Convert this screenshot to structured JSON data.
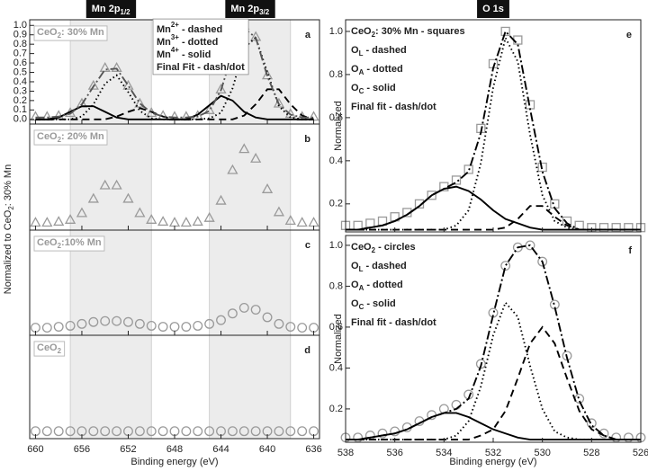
{
  "chart_data": [
    {
      "type": "line",
      "letter": "a",
      "label": [
        {
          "text": "CeO"
        },
        {
          "sub": "2"
        },
        {
          "text": ": 30% Mn"
        }
      ],
      "headers": [
        [
          {
            "text": "Mn 2p"
          },
          {
            "sub": "1/2"
          }
        ],
        [
          {
            "text": "Mn 2p"
          },
          {
            "sub": "3/2"
          }
        ]
      ],
      "y_label": [
        {
          "text": "Normalized to CeO"
        },
        {
          "sub": "2"
        },
        {
          "text": ": 30% Mn"
        }
      ],
      "legend": "upper center",
      "xlim": [
        660.5,
        635.5
      ],
      "ylim": [
        -0.05,
        1.06
      ],
      "xticks": [
        660,
        656,
        652,
        648,
        644,
        640,
        636
      ],
      "xtick_labels": false,
      "yticks": [
        {
          "value": 0,
          "label": "0.0"
        },
        0.1,
        0.2,
        0.3,
        0.4,
        0.5,
        0.6,
        0.7,
        0.8,
        0.9,
        {
          "value": 1,
          "label": "1.0"
        }
      ],
      "shaded": [
        [
          657,
          650
        ],
        [
          645,
          638
        ]
      ],
      "x": [
        660,
        659,
        658,
        657,
        656,
        655,
        654,
        653,
        652,
        651,
        650,
        649,
        648,
        647,
        646,
        645,
        644,
        643,
        642,
        641,
        640,
        639,
        638,
        637,
        636
      ],
      "series": [
        {
          "marker": "triangle",
          "color": "#9a9a9a",
          "values": [
            0.03,
            0.03,
            0.04,
            0.07,
            0.17,
            0.36,
            0.55,
            0.55,
            0.36,
            0.17,
            0.07,
            0.04,
            0.03,
            0.03,
            0.04,
            0.1,
            0.32,
            0.72,
            1.0,
            0.88,
            0.47,
            0.17,
            0.06,
            0.03,
            0.03
          ]
        },
        {
          "name": [
            {
              "text": "Mn"
            },
            {
              "sup": "2+"
            },
            {
              "text": " - dashed"
            }
          ],
          "style": "dashed",
          "color": "#000000",
          "values": [
            0,
            0,
            0,
            0,
            0,
            0,
            0,
            0.03,
            0.08,
            0.12,
            0.08,
            0.03,
            0,
            0,
            0,
            0,
            0,
            0,
            0.04,
            0.16,
            0.32,
            0.32,
            0.16,
            0.04,
            0
          ]
        },
        {
          "name": [
            {
              "text": "Mn"
            },
            {
              "sup": "3+"
            },
            {
              "text": " - dotted"
            }
          ],
          "style": "dotted",
          "color": "#000000",
          "values": [
            0,
            0,
            0,
            0,
            0.03,
            0.16,
            0.38,
            0.47,
            0.29,
            0.09,
            0.01,
            0,
            0,
            0,
            0,
            0.01,
            0.07,
            0.33,
            0.76,
            0.87,
            0.5,
            0.14,
            0.02,
            0,
            0
          ]
        },
        {
          "name": [
            {
              "text": "Mn"
            },
            {
              "sup": "4+"
            },
            {
              "text": " - solid"
            }
          ],
          "style": "solid",
          "color": "#000000",
          "values": [
            0,
            0,
            0.02,
            0.08,
            0.14,
            0.14,
            0.08,
            0.02,
            0,
            0,
            0,
            0,
            0,
            0,
            0.05,
            0.15,
            0.25,
            0.2,
            0.08,
            0.02,
            0,
            0,
            0,
            0,
            0
          ]
        },
        {
          "name": [
            {
              "text": "Final Fit - dash/dot"
            }
          ],
          "style": "dashdot",
          "color": "#555555",
          "values": [
            0.02,
            0.02,
            0.03,
            0.06,
            0.16,
            0.35,
            0.53,
            0.54,
            0.36,
            0.17,
            0.07,
            0.03,
            0.02,
            0.02,
            0.03,
            0.09,
            0.31,
            0.71,
            0.97,
            0.87,
            0.46,
            0.16,
            0.05,
            0.02,
            0.02
          ]
        }
      ]
    },
    {
      "type": "line",
      "letter": "b",
      "label": [
        {
          "text": "CeO"
        },
        {
          "sub": "2"
        },
        {
          "text": ": 20% Mn"
        }
      ],
      "xlim": [
        660.5,
        635.5
      ],
      "ylim": [
        -0.05,
        1.06
      ],
      "xticks": [
        660,
        656,
        652,
        648,
        644,
        640,
        636
      ],
      "xtick_labels": false,
      "shaded": [
        [
          657,
          650
        ],
        [
          645,
          638
        ]
      ],
      "x": [
        660,
        659,
        658,
        657,
        656,
        655,
        654,
        653,
        652,
        651,
        650,
        649,
        648,
        647,
        646,
        645,
        644,
        643,
        642,
        641,
        640,
        639,
        638,
        637,
        636
      ],
      "series": [
        {
          "marker": "triangle",
          "color": "#9a9a9a",
          "values": [
            0.03,
            0.03,
            0.04,
            0.06,
            0.13,
            0.28,
            0.42,
            0.42,
            0.28,
            0.13,
            0.06,
            0.04,
            0.03,
            0.03,
            0.04,
            0.08,
            0.26,
            0.58,
            0.8,
            0.7,
            0.38,
            0.14,
            0.05,
            0.03,
            0.03
          ]
        }
      ]
    },
    {
      "type": "line",
      "letter": "c",
      "label": [
        {
          "text": "CeO"
        },
        {
          "sub": "2"
        },
        {
          "text": ":10% Mn"
        }
      ],
      "xlim": [
        660.5,
        635.5
      ],
      "ylim": [
        -0.05,
        1.06
      ],
      "xticks": [
        660,
        656,
        652,
        648,
        644,
        640,
        636
      ],
      "xtick_labels": false,
      "shaded": [
        [
          657,
          650
        ],
        [
          645,
          638
        ]
      ],
      "x": [
        660,
        659,
        658,
        657,
        656,
        655,
        654,
        653,
        652,
        651,
        650,
        649,
        648,
        647,
        646,
        645,
        644,
        643,
        642,
        641,
        640,
        639,
        638,
        637,
        636
      ],
      "series": [
        {
          "marker": "circle",
          "color": "#9a9a9a",
          "values": [
            0.03,
            0.03,
            0.04,
            0.05,
            0.07,
            0.09,
            0.1,
            0.1,
            0.09,
            0.07,
            0.05,
            0.04,
            0.04,
            0.04,
            0.05,
            0.07,
            0.11,
            0.18,
            0.24,
            0.22,
            0.14,
            0.07,
            0.04,
            0.03,
            0.03
          ]
        }
      ]
    },
    {
      "type": "line",
      "letter": "d",
      "label": [
        {
          "text": "CeO"
        },
        {
          "sub": "2"
        }
      ],
      "x_label": [
        {
          "text": "Binding energy (eV)"
        }
      ],
      "xlim": [
        660.5,
        635.5
      ],
      "ylim": [
        -0.05,
        1.06
      ],
      "xticks": [
        660,
        656,
        652,
        648,
        644,
        640,
        636
      ],
      "xtick_labels": true,
      "shaded": [
        [
          657,
          650
        ],
        [
          645,
          638
        ]
      ],
      "x": [
        660,
        659,
        658,
        657,
        656,
        655,
        654,
        653,
        652,
        651,
        650,
        649,
        648,
        647,
        646,
        645,
        644,
        643,
        642,
        641,
        640,
        639,
        638,
        637,
        636
      ],
      "series": [
        {
          "marker": "circle",
          "color": "#9a9a9a",
          "values": [
            0.03,
            0.03,
            0.03,
            0.03,
            0.03,
            0.03,
            0.03,
            0.03,
            0.03,
            0.03,
            0.03,
            0.03,
            0.03,
            0.03,
            0.03,
            0.03,
            0.03,
            0.03,
            0.03,
            0.03,
            0.03,
            0.03,
            0.03,
            0.03,
            0.03
          ]
        }
      ]
    },
    {
      "type": "line",
      "letter": "e",
      "headers": [
        [
          {
            "text": "O 1s"
          }
        ]
      ],
      "y_label": [
        {
          "text": "Normalized"
        }
      ],
      "legend": "upper left",
      "xlim": [
        538,
        526
      ],
      "ylim": [
        0.07,
        1.054
      ],
      "xticks": [
        538,
        536,
        534,
        532,
        530,
        528,
        526
      ],
      "xtick_labels": false,
      "yticks": [
        0.2,
        0.4,
        0.6,
        0.8,
        {
          "value": 1,
          "label": "1.0"
        }
      ],
      "x": [
        538,
        537.5,
        537,
        536.5,
        536,
        535.5,
        535,
        534.5,
        534,
        533.5,
        533,
        532.5,
        532,
        531.5,
        531,
        530.5,
        530,
        529.5,
        529,
        528.5,
        528,
        527.5,
        527,
        526.5,
        526
      ],
      "series": [
        {
          "name": [
            {
              "text": "CeO"
            },
            {
              "sub": "2"
            },
            {
              "text": ": 30% Mn - squares"
            }
          ],
          "marker": "square",
          "color": "#9a9a9a",
          "values": [
            0.1,
            0.1,
            0.11,
            0.12,
            0.14,
            0.16,
            0.2,
            0.24,
            0.28,
            0.31,
            0.36,
            0.55,
            0.85,
            1.0,
            0.96,
            0.66,
            0.37,
            0.2,
            0.12,
            0.1,
            0.09,
            0.09,
            0.09,
            0.09,
            0.09
          ]
        },
        {
          "name": [
            {
              "text": "O"
            },
            {
              "sub": "L"
            },
            {
              "text": " - dashed"
            }
          ],
          "style": "dashed",
          "color": "#000000",
          "values": [
            0.08,
            0.08,
            0.08,
            0.08,
            0.08,
            0.08,
            0.08,
            0.08,
            0.08,
            0.08,
            0.08,
            0.08,
            0.08,
            0.09,
            0.13,
            0.19,
            0.19,
            0.14,
            0.1,
            0.08,
            0.08,
            0.08,
            0.08,
            0.08,
            0.08
          ]
        },
        {
          "name": [
            {
              "text": "O"
            },
            {
              "sub": "A"
            },
            {
              "text": " - dotted"
            }
          ],
          "style": "dotted",
          "color": "#000000",
          "values": [
            0.08,
            0.08,
            0.08,
            0.08,
            0.08,
            0.08,
            0.08,
            0.08,
            0.08,
            0.1,
            0.17,
            0.39,
            0.74,
            0.97,
            0.86,
            0.52,
            0.24,
            0.12,
            0.09,
            0.08,
            0.08,
            0.08,
            0.08,
            0.08,
            0.08
          ]
        },
        {
          "name": [
            {
              "text": "O"
            },
            {
              "sub": "C"
            },
            {
              "text": " - solid"
            }
          ],
          "style": "solid",
          "color": "#000000",
          "values": [
            0.08,
            0.08,
            0.09,
            0.1,
            0.12,
            0.15,
            0.19,
            0.24,
            0.27,
            0.28,
            0.26,
            0.22,
            0.17,
            0.13,
            0.11,
            0.09,
            0.08,
            0.08,
            0.08,
            0.08,
            0.08,
            0.08,
            0.08,
            0.08,
            0.08
          ]
        },
        {
          "name": [
            {
              "text": "Final fit - dash/dot"
            }
          ],
          "style": "dashdot",
          "color": "#000000",
          "values": [
            0.08,
            0.08,
            0.09,
            0.1,
            0.12,
            0.15,
            0.19,
            0.24,
            0.27,
            0.3,
            0.35,
            0.53,
            0.83,
            1.0,
            0.94,
            0.64,
            0.35,
            0.18,
            0.11,
            0.08,
            0.08,
            0.08,
            0.08,
            0.08,
            0.08
          ]
        }
      ]
    },
    {
      "type": "line",
      "letter": "f",
      "y_label": [
        {
          "text": "Normalized"
        }
      ],
      "x_label": [
        {
          "text": "Binding energy (eV)"
        }
      ],
      "legend": "upper left",
      "xlim": [
        538,
        526
      ],
      "ylim": [
        0.037,
        1.048
      ],
      "xticks": [
        538,
        536,
        534,
        532,
        530,
        528,
        526
      ],
      "xtick_labels": true,
      "yticks": [
        0.2,
        0.4,
        0.6,
        0.8,
        {
          "value": 1,
          "label": "1.0"
        }
      ],
      "x": [
        538,
        537.5,
        537,
        536.5,
        536,
        535.5,
        535,
        534.5,
        534,
        533.5,
        533,
        532.5,
        532,
        531.5,
        531,
        530.5,
        530,
        529.5,
        529,
        528.5,
        528,
        527.5,
        527,
        526.5,
        526
      ],
      "series": [
        {
          "name": [
            {
              "text": "CeO"
            },
            {
              "sub": "2"
            },
            {
              "text": " - circles"
            }
          ],
          "marker": "circle",
          "color": "#9a9a9a",
          "values": [
            0.06,
            0.06,
            0.07,
            0.08,
            0.09,
            0.11,
            0.14,
            0.17,
            0.2,
            0.22,
            0.27,
            0.42,
            0.67,
            0.9,
            0.99,
            1.0,
            0.92,
            0.71,
            0.46,
            0.25,
            0.13,
            0.08,
            0.06,
            0.06,
            0.06
          ]
        },
        {
          "name": [
            {
              "text": "O"
            },
            {
              "sub": "L"
            },
            {
              "text": " - dashed"
            }
          ],
          "style": "dashed",
          "color": "#000000",
          "values": [
            0.05,
            0.05,
            0.05,
            0.05,
            0.05,
            0.05,
            0.05,
            0.05,
            0.05,
            0.05,
            0.05,
            0.07,
            0.1,
            0.19,
            0.35,
            0.52,
            0.6,
            0.52,
            0.35,
            0.19,
            0.1,
            0.07,
            0.05,
            0.05,
            0.05
          ]
        },
        {
          "name": [
            {
              "text": "O"
            },
            {
              "sub": "A"
            },
            {
              "text": " - dotted"
            }
          ],
          "style": "dotted",
          "color": "#000000",
          "values": [
            0.05,
            0.05,
            0.05,
            0.05,
            0.05,
            0.05,
            0.05,
            0.05,
            0.05,
            0.07,
            0.14,
            0.31,
            0.56,
            0.72,
            0.65,
            0.41,
            0.2,
            0.09,
            0.06,
            0.05,
            0.05,
            0.05,
            0.05,
            0.05,
            0.05
          ]
        },
        {
          "name": [
            {
              "text": "O"
            },
            {
              "sub": "C"
            },
            {
              "text": " - solid"
            }
          ],
          "style": "solid",
          "color": "#000000",
          "values": [
            0.05,
            0.05,
            0.06,
            0.07,
            0.08,
            0.1,
            0.13,
            0.16,
            0.18,
            0.18,
            0.16,
            0.13,
            0.1,
            0.08,
            0.06,
            0.05,
            0.05,
            0.05,
            0.05,
            0.05,
            0.05,
            0.05,
            0.05,
            0.05,
            0.05
          ]
        },
        {
          "name": [
            {
              "text": "Final fit - dash/dot"
            }
          ],
          "style": "dashdot",
          "color": "#000000",
          "values": [
            0.05,
            0.05,
            0.06,
            0.07,
            0.08,
            0.1,
            0.13,
            0.16,
            0.18,
            0.2,
            0.25,
            0.41,
            0.66,
            0.9,
            0.99,
            1.0,
            0.92,
            0.7,
            0.45,
            0.24,
            0.12,
            0.07,
            0.05,
            0.05,
            0.05
          ]
        }
      ]
    }
  ]
}
